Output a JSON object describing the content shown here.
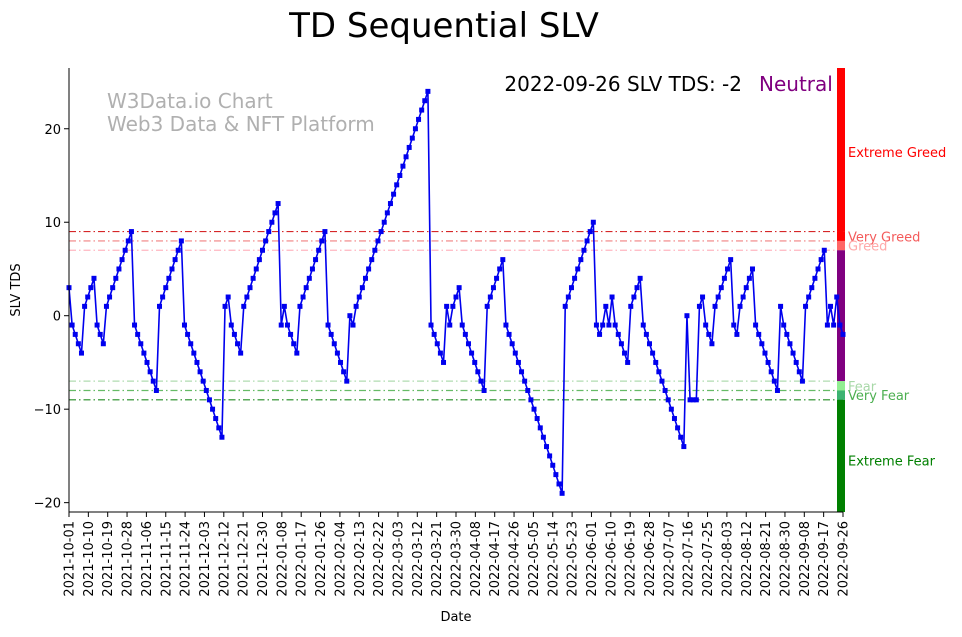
{
  "chart_data": {
    "type": "line",
    "title": "TD Sequential SLV",
    "xlabel": "Date",
    "ylabel": "SLV TDS",
    "ylim": [
      -21,
      26.5
    ],
    "yticks": [
      -20,
      -10,
      0,
      10,
      20
    ],
    "watermark": [
      "W3Data.io Chart",
      "Web3 Data & NFT Platform"
    ],
    "status": {
      "text": "2022-09-26 SLV TDS: -2",
      "sentiment": "Neutral",
      "sentiment_color": "#800080"
    },
    "x_tick_labels": [
      "2021-10-01",
      "2021-10-10",
      "2021-10-19",
      "2021-10-28",
      "2021-11-06",
      "2021-11-15",
      "2021-11-24",
      "2021-12-03",
      "2021-12-12",
      "2021-12-21",
      "2021-12-30",
      "2022-01-08",
      "2022-01-17",
      "2022-01-26",
      "2022-02-04",
      "2022-02-13",
      "2022-02-22",
      "2022-03-03",
      "2022-03-12",
      "2022-03-21",
      "2022-03-30",
      "2022-04-08",
      "2022-04-17",
      "2022-04-26",
      "2022-05-05",
      "2022-05-14",
      "2022-05-23",
      "2022-06-01",
      "2022-06-10",
      "2022-06-19",
      "2022-06-28",
      "2022-07-07",
      "2022-07-16",
      "2022-07-25",
      "2022-08-03",
      "2022-08-12",
      "2022-08-21",
      "2022-08-30",
      "2022-09-08",
      "2022-09-17",
      "2022-09-26"
    ],
    "x_range": [
      "2021-10-01",
      "2022-09-26"
    ],
    "reference_lines": [
      {
        "value": 9,
        "color": "#d62728"
      },
      {
        "value": 8,
        "color": "#f08080"
      },
      {
        "value": 7,
        "color": "#ffb6c1"
      },
      {
        "value": -7,
        "color": "#b0dcb0"
      },
      {
        "value": -8,
        "color": "#66bb66"
      },
      {
        "value": -9,
        "color": "#228b22"
      }
    ],
    "zones": [
      {
        "label": "Extreme Greed",
        "label_color": "#ff0000",
        "bar_color": "#ff0000",
        "from": 9,
        "to": 26.5,
        "label_y": 17.5
      },
      {
        "label": "Very Greed",
        "label_color": "#f45b5b",
        "bar_color": "#ff0000",
        "from": 8,
        "to": 9,
        "label_y": 8.5
      },
      {
        "label": "Greed",
        "label_color": "#ffaaaa",
        "bar_color": "#ff6666",
        "from": 7,
        "to": 8,
        "label_y": 7.5
      },
      {
        "label": "",
        "label_color": "#800080",
        "bar_color": "#800080",
        "from": -7,
        "to": 7,
        "label_y": 0
      },
      {
        "label": "Fear",
        "label_color": "#a8d8a8",
        "bar_color": "#90ee90",
        "from": -8,
        "to": -7,
        "label_y": -7.5
      },
      {
        "label": "Very Fear",
        "label_color": "#4caf50",
        "bar_color": "#3cb371",
        "from": -9,
        "to": -8,
        "label_y": -8.5
      },
      {
        "label": "Extreme Fear",
        "label_color": "#008000",
        "bar_color": "#008000",
        "from": -21,
        "to": -9,
        "label_y": -15.5
      }
    ],
    "series": [
      {
        "name": "SLV TDS",
        "color": "#0000ee",
        "values": [
          3,
          -1,
          -2,
          -3,
          -4,
          1,
          2,
          3,
          4,
          -1,
          -2,
          -3,
          1,
          2,
          3,
          4,
          5,
          6,
          7,
          8,
          9,
          -1,
          -2,
          -3,
          -4,
          -5,
          -6,
          -7,
          -8,
          1,
          2,
          3,
          4,
          5,
          6,
          7,
          8,
          -1,
          -2,
          -3,
          -4,
          -5,
          -6,
          -7,
          -8,
          -9,
          -10,
          -11,
          -12,
          -13,
          1,
          2,
          -1,
          -2,
          -3,
          -4,
          1,
          2,
          3,
          4,
          5,
          6,
          7,
          8,
          9,
          10,
          11,
          12,
          -1,
          1,
          -1,
          -2,
          -3,
          -4,
          1,
          2,
          3,
          4,
          5,
          6,
          7,
          8,
          9,
          -1,
          -2,
          -3,
          -4,
          -5,
          -6,
          -7,
          0,
          -1,
          1,
          2,
          3,
          4,
          5,
          6,
          7,
          8,
          9,
          10,
          11,
          12,
          13,
          14,
          15,
          16,
          17,
          18,
          19,
          20,
          21,
          22,
          23,
          24,
          -1,
          -2,
          -3,
          -4,
          -5,
          1,
          -1,
          1,
          2,
          3,
          -1,
          -2,
          -3,
          -4,
          -5,
          -6,
          -7,
          -8,
          1,
          2,
          3,
          4,
          5,
          6,
          -1,
          -2,
          -3,
          -4,
          -5,
          -6,
          -7,
          -8,
          -9,
          -10,
          -11,
          -12,
          -13,
          -14,
          -15,
          -16,
          -17,
          -18,
          -19,
          1,
          2,
          3,
          4,
          5,
          6,
          7,
          8,
          9,
          10,
          -1,
          -2,
          -1,
          1,
          -1,
          2,
          -1,
          -2,
          -3,
          -4,
          -5,
          1,
          2,
          3,
          4,
          -1,
          -2,
          -3,
          -4,
          -5,
          -6,
          -7,
          -8,
          -9,
          -10,
          -11,
          -12,
          -13,
          -14,
          0,
          -9,
          -9,
          -9,
          1,
          2,
          -1,
          -2,
          -3,
          1,
          2,
          3,
          4,
          5,
          6,
          -1,
          -2,
          1,
          2,
          3,
          4,
          5,
          -1,
          -2,
          -3,
          -4,
          -5,
          -6,
          -7,
          -8,
          1,
          -1,
          -2,
          -3,
          -4,
          -5,
          -6,
          -7,
          1,
          2,
          3,
          4,
          5,
          6,
          7,
          -1,
          1,
          -1,
          2,
          -1,
          -2
        ]
      }
    ]
  }
}
